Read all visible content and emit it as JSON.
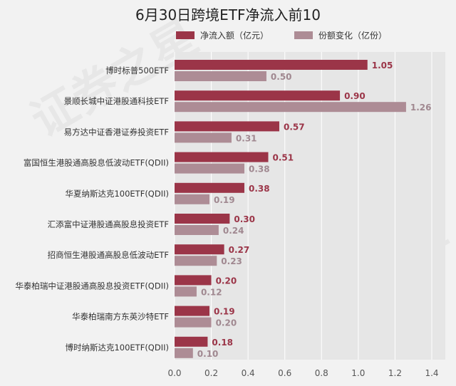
{
  "chart_data": {
    "type": "bar",
    "orientation": "horizontal",
    "title": "6月30日跨境ETF净流入前10",
    "xlabel": "",
    "ylabel": "",
    "xlim": [
      0,
      1.4
    ],
    "xticks": [
      "0.0",
      "0.2",
      "0.4",
      "0.6",
      "0.8",
      "1.0",
      "1.2",
      "1.4"
    ],
    "legend_position": "top",
    "grid": true,
    "categories": [
      "博时标普500ETF",
      "景顺长城中证港股通科技ETF",
      "易方达中证香港证券投资ETF",
      "富国恒生港股通高股息低波动ETF(QDII)",
      "华夏纳斯达克100ETF(QDII)",
      "汇添富中证港股通高股息投资ETF",
      "招商恒生港股通高股息低波动ETF",
      "华泰柏瑞中证港股通高股息投资ETF(QDII)",
      "华泰柏瑞南方东英沙特ETF",
      "博时纳斯达克100ETF(QDII)"
    ],
    "series": [
      {
        "name": "净流入额（亿元）",
        "color": "#9b3548",
        "label_color": "#9b3548",
        "values": [
          1.05,
          0.9,
          0.57,
          0.51,
          0.38,
          0.3,
          0.27,
          0.2,
          0.19,
          0.18
        ],
        "labels": [
          "1.05",
          "0.90",
          "0.57",
          "0.51",
          "0.38",
          "0.30",
          "0.27",
          "0.20",
          "0.19",
          "0.18"
        ]
      },
      {
        "name": "份额变化（亿份）",
        "color": "#ad8c95",
        "label_color": "#a08890",
        "values": [
          0.5,
          1.26,
          0.31,
          0.38,
          0.19,
          0.24,
          0.23,
          0.12,
          0.2,
          0.1
        ],
        "labels": [
          "0.50",
          "1.26",
          "0.31",
          "0.38",
          "0.19",
          "0.24",
          "0.23",
          "0.12",
          "0.20",
          "0.10"
        ]
      }
    ]
  },
  "watermark": "证券之星"
}
